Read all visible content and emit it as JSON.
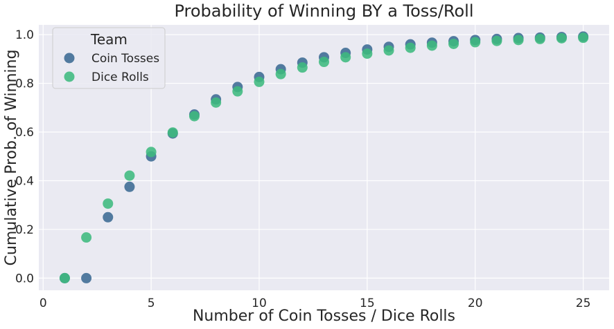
{
  "chart_data": {
    "type": "scatter",
    "title": "Probability of Winning BY a Toss/Roll",
    "xlabel": "Number of Coin Tosses / Dice Rolls",
    "ylabel": "Cumulative Prob. of Winning",
    "xlim": [
      -0.2,
      26.2
    ],
    "ylim": [
      -0.05,
      1.04
    ],
    "xticks": [
      0,
      5,
      10,
      15,
      20,
      25
    ],
    "yticks": [
      0.0,
      0.2,
      0.4,
      0.6,
      0.8,
      1.0
    ],
    "xtick_labels": [
      "0",
      "5",
      "10",
      "15",
      "20",
      "25"
    ],
    "ytick_labels": [
      "0.0",
      "0.2",
      "0.4",
      "0.6",
      "0.8",
      "1.0"
    ],
    "grid": true,
    "background": "#eaeaf2",
    "legend": {
      "title": "Team",
      "placement": "top-left"
    },
    "series": [
      {
        "name": "Coin Tosses",
        "color": "#3b6a93",
        "x": [
          1,
          2,
          3,
          4,
          5,
          6,
          7,
          8,
          9,
          10,
          11,
          12,
          13,
          14,
          15,
          16,
          17,
          18,
          19,
          20,
          21,
          22,
          23,
          24,
          25
        ],
        "y": [
          0.0,
          0.0,
          0.25,
          0.375,
          0.5,
          0.594,
          0.672,
          0.734,
          0.785,
          0.826,
          0.858,
          0.885,
          0.907,
          0.925,
          0.939,
          0.95,
          0.96,
          0.967,
          0.973,
          0.978,
          0.982,
          0.986,
          0.988,
          0.99,
          0.992
        ]
      },
      {
        "name": "Dice Rolls",
        "color": "#3dba7e",
        "x": [
          1,
          2,
          3,
          4,
          5,
          6,
          7,
          8,
          9,
          10,
          11,
          12,
          13,
          14,
          15,
          16,
          17,
          18,
          19,
          20,
          21,
          22,
          23,
          24,
          25
        ],
        "y": [
          0.0,
          0.167,
          0.306,
          0.421,
          0.518,
          0.598,
          0.665,
          0.721,
          0.767,
          0.806,
          0.838,
          0.865,
          0.888,
          0.907,
          0.922,
          0.935,
          0.946,
          0.955,
          0.962,
          0.969,
          0.974,
          0.978,
          0.982,
          0.985,
          0.987
        ]
      }
    ]
  }
}
